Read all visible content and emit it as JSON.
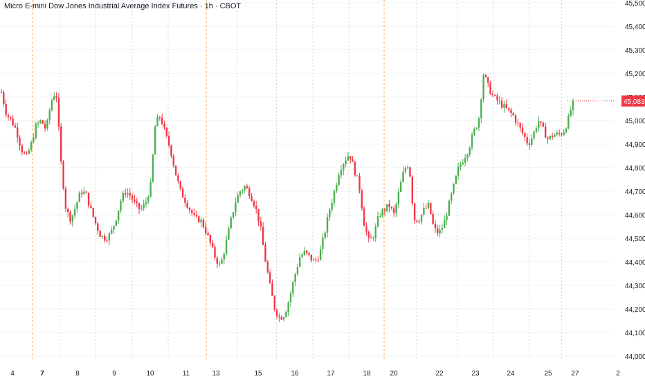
{
  "header": {
    "title": "Micro E-mini Dow Jones Industrial Average Index Futures · 1h · CBOT"
  },
  "colors": {
    "up": "#26a69a",
    "down": "#ef5350",
    "candle_up": "#4caf50",
    "candle_down": "#f23645",
    "grid": "#f0f3fa",
    "session_line": "#f5a623",
    "day_line": "#b2b5be",
    "last_price_badge": "#f23645"
  },
  "chart_data": {
    "type": "candlestick",
    "symbol": "Micro E-mini Dow Jones Industrial Average Index Futures",
    "interval": "1h",
    "exchange": "CBOT",
    "ylim": [
      43980,
      45520
    ],
    "y_ticks": [
      44000,
      44100,
      44200,
      44300,
      44400,
      44500,
      44600,
      44700,
      44800,
      44900,
      45000,
      45100,
      45200,
      45300,
      45400,
      45500
    ],
    "y_tick_labels": [
      "44,000",
      "44,100",
      "44,200",
      "44,300",
      "44,400",
      "44,500",
      "44,600",
      "44,700",
      "44,800",
      "44,900",
      "45,000",
      "45,100",
      "45,200",
      "45,300",
      "45,400",
      "45,500"
    ],
    "last_price": 45083,
    "last_price_label": "45,083",
    "x_labels": [
      {
        "label": "4",
        "bold": false,
        "index": 0
      },
      {
        "label": "7",
        "bold": true,
        "index": 1
      },
      {
        "label": "8",
        "bold": false,
        "index": 2
      },
      {
        "label": "9",
        "bold": false,
        "index": 3
      },
      {
        "label": "10",
        "bold": false,
        "index": 4
      },
      {
        "label": "11",
        "bold": false,
        "index": 5
      },
      {
        "label": "13",
        "bold": false,
        "index": 6
      },
      {
        "label": "15",
        "bold": false,
        "index": 7
      },
      {
        "label": "16",
        "bold": false,
        "index": 8
      },
      {
        "label": "17",
        "bold": false,
        "index": 9
      },
      {
        "label": "18",
        "bold": false,
        "index": 10
      },
      {
        "label": "20",
        "bold": false,
        "index": 11
      },
      {
        "label": "22",
        "bold": false,
        "index": 12
      },
      {
        "label": "23",
        "bold": false,
        "index": 13
      },
      {
        "label": "24",
        "bold": false,
        "index": 14
      },
      {
        "label": "25",
        "bold": false,
        "index": 15
      },
      {
        "label": "27",
        "bold": false,
        "index": 16
      },
      {
        "label": "2",
        "bold": false,
        "index": 17
      }
    ],
    "session_breaks": [
      1,
      6,
      11
    ],
    "price_path": [
      45120,
      45030,
      45000,
      44960,
      44880,
      44840,
      44900,
      44980,
      45000,
      44960,
      45080,
      45130,
      44820,
      44620,
      44580,
      44640,
      44700,
      44690,
      44620,
      44560,
      44510,
      44500,
      44520,
      44580,
      44660,
      44700,
      44680,
      44640,
      44620,
      44650,
      44720,
      44990,
      45020,
      44940,
      44880,
      44780,
      44700,
      44660,
      44620,
      44580,
      44580,
      44540,
      44480,
      44420,
      44380,
      44460,
      44560,
      44650,
      44700,
      44720,
      44690,
      44640,
      44560,
      44420,
      44300,
      44200,
      44160,
      44180,
      44250,
      44340,
      44420,
      44440,
      44420,
      44400,
      44430,
      44520,
      44620,
      44700,
      44790,
      44830,
      44860,
      44790,
      44720,
      44560,
      44480,
      44520,
      44600,
      44620,
      44640,
      44600,
      44700,
      44790,
      44820,
      44580,
      44580,
      44620,
      44640,
      44540,
      44520,
      44560,
      44640,
      44720,
      44800,
      44840,
      44880,
      44950,
      45000,
      45200,
      45140,
      45100,
      45080,
      45060,
      45040,
      45020,
      44980,
      44940,
      44900,
      44940,
      45000,
      44960,
      44920,
      44940,
      44940,
      44950,
      45000,
      45083
    ]
  }
}
